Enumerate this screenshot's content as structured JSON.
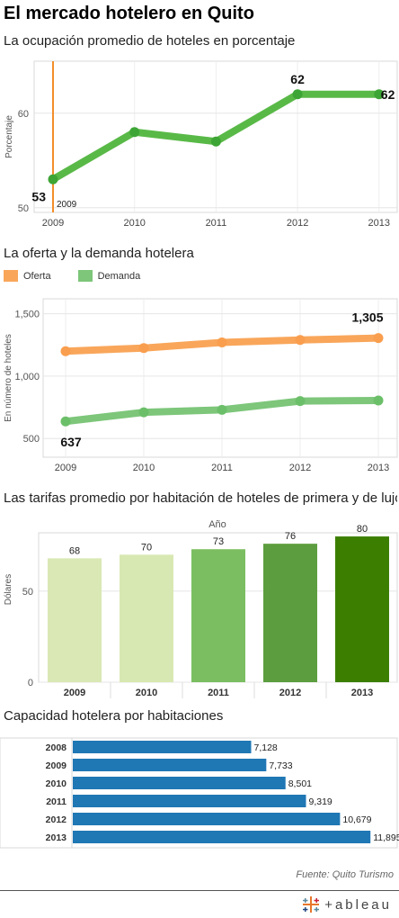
{
  "page": {
    "title": "El mercado hotelero en Quito",
    "source": "Fuente: Quito Turismo",
    "logo_text": "+ableau",
    "logo_icon": "tableau-cross-icon"
  },
  "chart_data": [
    {
      "type": "line",
      "title": "La ocupación promedio de hoteles en porcentaje",
      "ylabel": "Porcentaje",
      "x": [
        "2009",
        "2010",
        "2011",
        "2012",
        "2013"
      ],
      "values": [
        53,
        58,
        57,
        62,
        62
      ],
      "ylim": [
        49.5,
        65.5
      ],
      "yticks": [
        "50",
        "60"
      ],
      "data_labels": [
        "53",
        "",
        "",
        "62",
        "62"
      ],
      "reference_line": {
        "x": "2009",
        "label": "2009",
        "color": "#F28E2B"
      },
      "color": "#59B947",
      "grid": true
    },
    {
      "type": "line",
      "title": "La oferta y la demanda hotelera",
      "ylabel": "En número de hoteles",
      "x": [
        "2009",
        "2010",
        "2011",
        "2012",
        "2013"
      ],
      "series": [
        {
          "name": "Oferta",
          "values": [
            1200,
            1225,
            1270,
            1290,
            1305
          ],
          "color": "#F9A65A"
        },
        {
          "name": "Demanda",
          "values": [
            637,
            710,
            730,
            800,
            805
          ],
          "color": "#7DC67A"
        }
      ],
      "ylim": [
        350,
        1620
      ],
      "yticks": [
        "500",
        "1,000",
        "1,500"
      ],
      "data_labels": [
        "637",
        "1,305"
      ],
      "legend": "top-left",
      "grid": true
    },
    {
      "type": "bar",
      "title": "Las tarifas promedio por habitación de hoteles de primera y de lujo",
      "x_header": "Año",
      "ylabel": "Dólares",
      "categories": [
        "2009",
        "2010",
        "2011",
        "2012",
        "2013"
      ],
      "values": [
        68,
        70,
        73,
        76,
        80
      ],
      "ylim": [
        0,
        82
      ],
      "yticks": [
        "0",
        "50"
      ],
      "colors": [
        "#DAE8B5",
        "#D8E8B2",
        "#7BBE61",
        "#5C9E3F",
        "#3C7F00"
      ]
    },
    {
      "type": "bar",
      "orientation": "horizontal",
      "title": "Capacidad hotelera por habitaciones",
      "categories": [
        "2008",
        "2009",
        "2010",
        "2011",
        "2012",
        "2013"
      ],
      "values": [
        7128,
        7733,
        8501,
        9319,
        10679,
        11895
      ],
      "value_labels": [
        "7,128",
        "7,733",
        "8,501",
        "9,319",
        "10,679",
        "11,895"
      ],
      "xlim": [
        0,
        13000
      ],
      "color": "#1F77B4"
    }
  ]
}
